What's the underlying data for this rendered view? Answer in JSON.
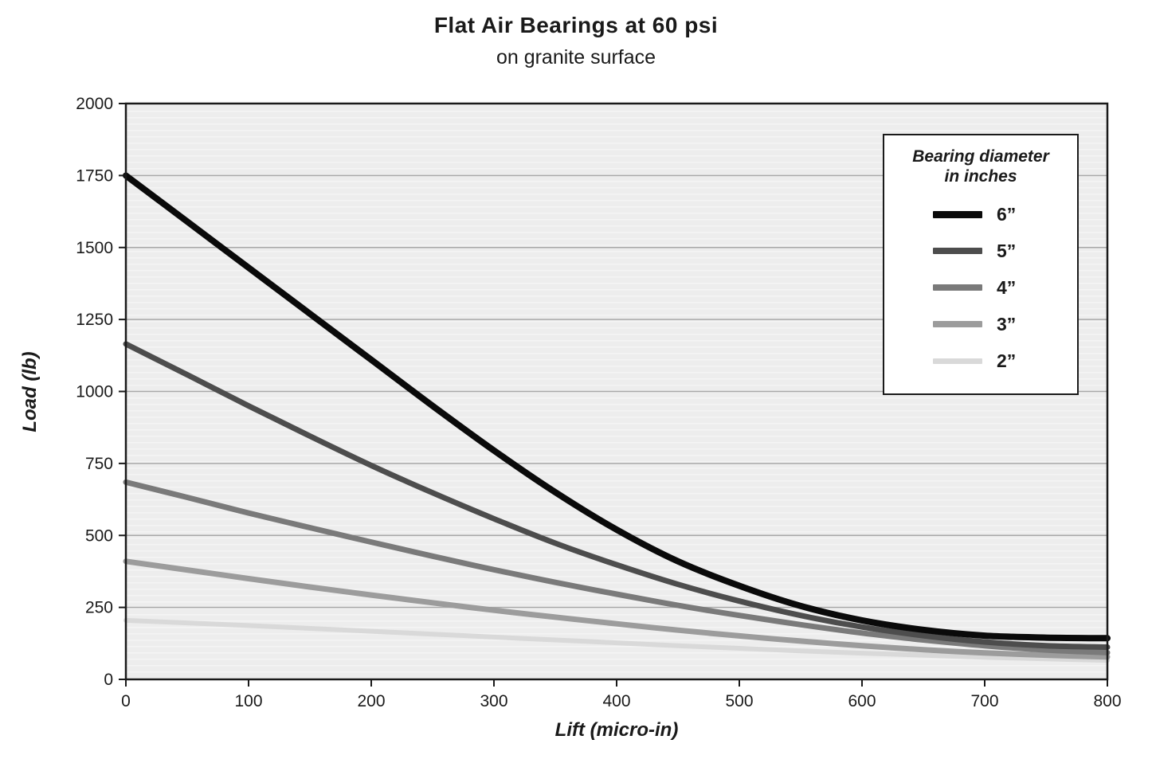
{
  "title": "Flat Air Bearings at 60 psi",
  "subtitle": "on granite surface",
  "chart_data": {
    "type": "line",
    "title": "Flat Air Bearings at 60 psi",
    "subtitle": "on granite surface",
    "xlabel": "Lift (micro-in)",
    "ylabel": "Load (lb)",
    "xlim": [
      0,
      800
    ],
    "ylim": [
      0,
      2000
    ],
    "x_ticks": [
      0,
      100,
      200,
      300,
      400,
      500,
      600,
      700,
      800
    ],
    "y_ticks": [
      0,
      250,
      500,
      750,
      1000,
      1250,
      1500,
      1750,
      2000
    ],
    "grid": "horizontal",
    "legend": {
      "title_line1": "Bearing diameter",
      "title_line2": "in inches",
      "position": "upper right"
    },
    "x": [
      0,
      50,
      100,
      150,
      200,
      250,
      300,
      350,
      400,
      450,
      500,
      550,
      600,
      650,
      700,
      750,
      800
    ],
    "series": [
      {
        "name": "6”",
        "color": "#0a0a0a",
        "width": 8,
        "values": [
          1750,
          1590,
          1430,
          1270,
          1110,
          950,
          795,
          650,
          520,
          410,
          325,
          255,
          205,
          172,
          152,
          145,
          143
        ]
      },
      {
        "name": "5”",
        "color": "#4d4d4d",
        "width": 7,
        "values": [
          1165,
          1058,
          950,
          845,
          743,
          648,
          558,
          473,
          398,
          330,
          272,
          222,
          182,
          152,
          130,
          117,
          112
        ]
      },
      {
        "name": "4”",
        "color": "#7a7a7a",
        "width": 7,
        "values": [
          685,
          632,
          578,
          527,
          477,
          428,
          381,
          337,
          296,
          257,
          222,
          190,
          161,
          137,
          117,
          102,
          93
        ]
      },
      {
        "name": "3”",
        "color": "#9c9c9c",
        "width": 7,
        "values": [
          410,
          380,
          350,
          321,
          293,
          266,
          240,
          216,
          193,
          171,
          151,
          133,
          117,
          103,
          92,
          84,
          78
        ]
      },
      {
        "name": "2”",
        "color": "#d9d9d9",
        "width": 6,
        "values": [
          205,
          196,
          187,
          177,
          167,
          157,
          147,
          137,
          127,
          117,
          108,
          99,
          91,
          84,
          77,
          71,
          66
        ]
      }
    ]
  },
  "colors": {
    "plot_bg": "#ededed",
    "plot_bg_stripe": "#f4f4f4",
    "grid": "#a8a8a8",
    "border": "#1a1a1a",
    "tick_text": "#1a1a1a"
  }
}
